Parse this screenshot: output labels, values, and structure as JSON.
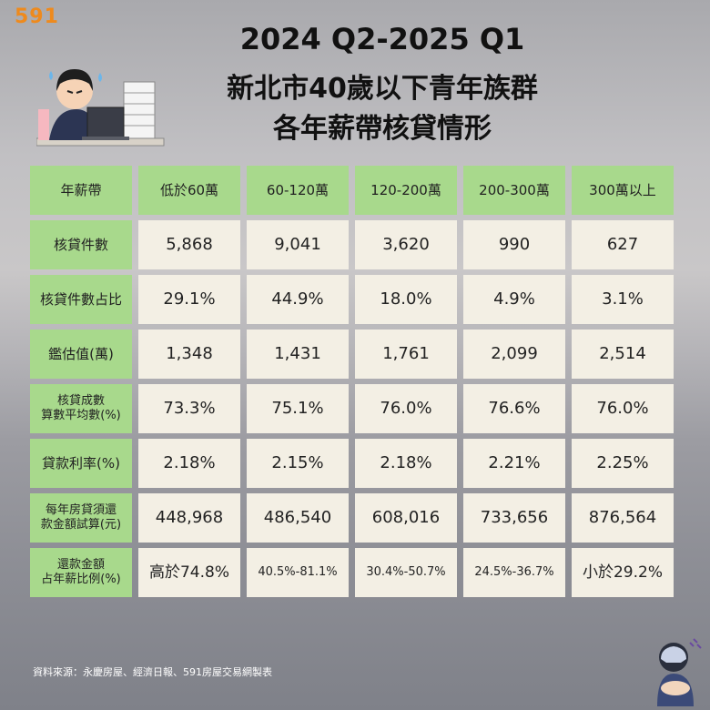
{
  "brand": "591",
  "title": {
    "line1": "2024 Q2-2025 Q1",
    "line2": "新北市40歲以下青年族群",
    "line3": "各年薪帶核貸情形"
  },
  "table": {
    "headers": [
      "年薪帶",
      "低於60萬",
      "60-120萬",
      "120-200萬",
      "200-300萬",
      "300萬以上"
    ],
    "rows": [
      {
        "label": "核貸件數",
        "values": [
          "5,868",
          "9,041",
          "3,620",
          "990",
          "627"
        ]
      },
      {
        "label": "核貸件數占比",
        "values": [
          "29.1%",
          "44.9%",
          "18.0%",
          "4.9%",
          "3.1%"
        ]
      },
      {
        "label": "鑑估值(萬)",
        "values": [
          "1,348",
          "1,431",
          "1,761",
          "2,099",
          "2,514"
        ]
      },
      {
        "label": "核貸成數\n算數平均數(%)",
        "values": [
          "73.3%",
          "75.1%",
          "76.0%",
          "76.6%",
          "76.0%"
        ]
      },
      {
        "label": "貸款利率(%)",
        "values": [
          "2.18%",
          "2.15%",
          "2.18%",
          "2.21%",
          "2.25%"
        ]
      },
      {
        "label": "每年房貸須還\n款金額試算(元)",
        "values": [
          "448,968",
          "486,540",
          "608,016",
          "733,656",
          "876,564"
        ]
      },
      {
        "label": "還款金額\n占年薪比例(%)",
        "values": [
          "高於74.8%",
          "40.5%-81.1%",
          "30.4%-50.7%",
          "24.5%-36.7%",
          "小於29.2%"
        ]
      }
    ]
  },
  "source": "資料來源：永慶房屋、經濟日報、591房屋交易網製表",
  "colors": {
    "header_bg": "#a8d98c",
    "cell_bg": "#f3efe4",
    "brand": "#ee8a1d"
  }
}
